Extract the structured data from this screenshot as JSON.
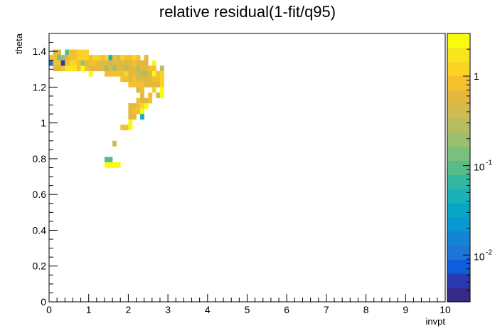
{
  "chart_data": {
    "type": "heatmap",
    "title": "relative residual(1-fit/q95)",
    "xlabel": "invpt",
    "ylabel": "theta",
    "xlim": [
      0,
      10
    ],
    "ylim": [
      0,
      1.5
    ],
    "x_bin_width": 0.1,
    "y_bin_width": 0.03,
    "x_ticks": [
      "0",
      "1",
      "2",
      "3",
      "4",
      "5",
      "6",
      "7",
      "8",
      "9",
      "10"
    ],
    "y_ticks": [
      "0",
      "0.2",
      "0.4",
      "0.6",
      "0.8",
      "1",
      "1.2",
      "1.4"
    ],
    "colorbar": {
      "scale": "log",
      "range": [
        0.003,
        3
      ],
      "ticks": [
        {
          "value": 0.01,
          "label": "10",
          "exp": "-2"
        },
        {
          "value": 0.1,
          "label": "10",
          "exp": "-1"
        },
        {
          "value": 1,
          "label": "1",
          "exp": ""
        }
      ]
    },
    "palette": [
      "#352a87",
      "#2a39b0",
      "#0f5cdd",
      "#1d74d9",
      "#1485d4",
      "#0998d1",
      "#08a6c6",
      "#17b1b6",
      "#33b7a0",
      "#57bb8a",
      "#7abf7c",
      "#9cbf6e",
      "#b6bd60",
      "#cfbb50",
      "#e2b93e",
      "#f5c02e",
      "#fbd325",
      "#f8e61d",
      "#f9fb0e"
    ],
    "cells": [
      [
        0.1,
        1.38,
        0.5
      ],
      [
        0.2,
        1.38,
        0.4
      ],
      [
        0.4,
        1.38,
        0.1
      ],
      [
        0.5,
        1.38,
        0.9
      ],
      [
        0.6,
        1.38,
        0.9
      ],
      [
        0.7,
        1.38,
        1.2
      ],
      [
        0.8,
        1.38,
        1.2
      ],
      [
        0.9,
        1.38,
        1.2
      ],
      [
        0.0,
        1.35,
        1.0
      ],
      [
        0.1,
        1.35,
        0.8
      ],
      [
        0.2,
        1.35,
        0.15
      ],
      [
        0.3,
        1.35,
        0.2
      ],
      [
        0.4,
        1.35,
        0.5
      ],
      [
        0.5,
        1.35,
        0.8
      ],
      [
        0.6,
        1.35,
        1.0
      ],
      [
        0.7,
        1.35,
        1.1
      ],
      [
        0.8,
        1.35,
        1.2
      ],
      [
        0.9,
        1.35,
        1.1
      ],
      [
        1.0,
        1.35,
        1.0
      ],
      [
        1.1,
        1.35,
        1.1
      ],
      [
        1.2,
        1.35,
        1.2
      ],
      [
        1.3,
        1.35,
        1.0
      ],
      [
        1.4,
        1.35,
        1.1
      ],
      [
        1.5,
        1.35,
        0.05
      ],
      [
        1.6,
        1.35,
        0.9
      ],
      [
        1.7,
        1.35,
        0.4
      ],
      [
        1.8,
        1.35,
        1.1
      ],
      [
        1.9,
        1.35,
        1.0
      ],
      [
        2.0,
        1.35,
        1.0
      ],
      [
        2.1,
        1.35,
        1.2
      ],
      [
        2.2,
        1.35,
        0.9
      ],
      [
        2.4,
        1.35,
        0.5
      ],
      [
        0.0,
        1.32,
        0.01
      ],
      [
        0.1,
        1.32,
        0.9
      ],
      [
        0.2,
        1.32,
        1.0
      ],
      [
        0.3,
        1.32,
        0.005
      ],
      [
        0.4,
        1.32,
        1.0
      ],
      [
        0.5,
        1.32,
        1.1
      ],
      [
        0.6,
        1.32,
        1.1
      ],
      [
        0.7,
        1.32,
        0.8
      ],
      [
        0.8,
        1.32,
        0.2
      ],
      [
        0.9,
        1.32,
        0.6
      ],
      [
        1.0,
        1.32,
        0.9
      ],
      [
        1.1,
        1.32,
        0.8
      ],
      [
        1.2,
        1.32,
        0.7
      ],
      [
        1.3,
        1.32,
        0.5
      ],
      [
        1.4,
        1.32,
        0.7
      ],
      [
        1.5,
        1.32,
        0.4
      ],
      [
        1.6,
        1.32,
        0.7
      ],
      [
        1.7,
        1.32,
        0.5
      ],
      [
        1.8,
        1.32,
        0.5
      ],
      [
        1.9,
        1.32,
        0.6
      ],
      [
        2.0,
        1.32,
        0.5
      ],
      [
        2.1,
        1.32,
        0.8
      ],
      [
        2.2,
        1.32,
        0.5
      ],
      [
        2.3,
        1.32,
        0.7
      ],
      [
        2.4,
        1.32,
        0.6
      ],
      [
        2.6,
        1.32,
        2.5
      ],
      [
        0.1,
        1.29,
        0.5
      ],
      [
        0.2,
        1.29,
        0.5
      ],
      [
        0.3,
        1.29,
        0.9
      ],
      [
        0.4,
        1.29,
        1.8
      ],
      [
        0.5,
        1.29,
        2.0
      ],
      [
        0.6,
        1.29,
        1.8
      ],
      [
        0.7,
        1.29,
        1.0
      ],
      [
        0.8,
        1.29,
        2.5
      ],
      [
        0.9,
        1.29,
        1.0
      ],
      [
        1.0,
        1.29,
        0.6
      ],
      [
        1.1,
        1.29,
        0.5
      ],
      [
        1.2,
        1.29,
        0.6
      ],
      [
        1.3,
        1.29,
        0.6
      ],
      [
        1.4,
        1.29,
        0.2
      ],
      [
        1.5,
        1.29,
        0.6
      ],
      [
        1.6,
        1.29,
        0.2
      ],
      [
        1.7,
        1.29,
        0.5
      ],
      [
        1.8,
        1.29,
        0.6
      ],
      [
        1.9,
        1.29,
        0.3
      ],
      [
        2.0,
        1.29,
        0.5
      ],
      [
        2.1,
        1.29,
        0.6
      ],
      [
        2.2,
        1.29,
        0.3
      ],
      [
        2.3,
        1.29,
        0.5
      ],
      [
        2.4,
        1.29,
        0.6
      ],
      [
        2.5,
        1.29,
        1.0
      ],
      [
        2.6,
        1.29,
        0.8
      ],
      [
        2.8,
        1.29,
        0.3
      ],
      [
        1.0,
        1.26,
        2.5
      ],
      [
        1.4,
        1.26,
        1.0
      ],
      [
        1.5,
        1.26,
        0.9
      ],
      [
        1.6,
        1.26,
        0.9
      ],
      [
        1.7,
        1.26,
        1.0
      ],
      [
        1.8,
        1.26,
        0.9
      ],
      [
        1.9,
        1.26,
        1.1
      ],
      [
        2.0,
        1.26,
        0.5
      ],
      [
        2.1,
        1.26,
        0.6
      ],
      [
        2.2,
        1.26,
        0.4
      ],
      [
        2.3,
        1.26,
        0.3
      ],
      [
        2.4,
        1.26,
        0.3
      ],
      [
        2.5,
        1.26,
        0.5
      ],
      [
        2.6,
        1.26,
        2.5
      ],
      [
        2.7,
        1.26,
        1.0
      ],
      [
        2.8,
        1.26,
        1.2
      ],
      [
        1.8,
        1.23,
        0.8
      ],
      [
        1.9,
        1.23,
        1.0
      ],
      [
        2.0,
        1.23,
        0.7
      ],
      [
        2.1,
        1.23,
        0.9
      ],
      [
        2.2,
        1.23,
        0.7
      ],
      [
        2.3,
        1.23,
        0.6
      ],
      [
        2.4,
        1.23,
        0.5
      ],
      [
        2.5,
        1.23,
        0.7
      ],
      [
        2.6,
        1.23,
        0.9
      ],
      [
        2.7,
        1.23,
        0.8
      ],
      [
        2.8,
        1.23,
        1.2
      ],
      [
        2.0,
        1.2,
        0.8
      ],
      [
        2.1,
        1.2,
        1.0
      ],
      [
        2.2,
        1.2,
        0.8
      ],
      [
        2.3,
        1.2,
        0.9
      ],
      [
        2.4,
        1.2,
        0.7
      ],
      [
        2.5,
        1.2,
        0.6
      ],
      [
        2.6,
        1.2,
        0.6
      ],
      [
        2.7,
        1.2,
        0.7
      ],
      [
        2.8,
        1.2,
        1.2
      ],
      [
        2.2,
        1.17,
        0.4
      ],
      [
        2.3,
        1.17,
        0.8
      ],
      [
        2.6,
        1.17,
        1.2
      ],
      [
        2.8,
        1.17,
        2.5
      ],
      [
        2.3,
        1.14,
        0.5
      ],
      [
        2.5,
        1.14,
        0.9
      ],
      [
        2.7,
        1.14,
        0.4
      ],
      [
        2.8,
        1.14,
        2.8
      ],
      [
        2.2,
        1.11,
        0.8
      ],
      [
        2.3,
        1.11,
        0.5
      ],
      [
        2.4,
        1.11,
        0.7
      ],
      [
        2.5,
        1.11,
        1.0
      ],
      [
        2.0,
        1.08,
        0.7
      ],
      [
        2.1,
        1.08,
        0.7
      ],
      [
        2.2,
        1.08,
        1.0
      ],
      [
        2.3,
        1.08,
        1.1
      ],
      [
        2.4,
        1.08,
        2.8
      ],
      [
        2.0,
        1.05,
        0.7
      ],
      [
        2.1,
        1.05,
        0.8
      ],
      [
        2.2,
        1.05,
        1.0
      ],
      [
        2.3,
        1.05,
        2.5
      ],
      [
        2.0,
        1.02,
        0.7
      ],
      [
        2.1,
        1.02,
        0.6
      ],
      [
        2.3,
        1.02,
        0.05
      ],
      [
        2.0,
        0.99,
        2.7
      ],
      [
        1.8,
        0.96,
        0.8
      ],
      [
        1.9,
        0.96,
        1.0
      ],
      [
        2.0,
        0.96,
        2.8
      ],
      [
        1.6,
        0.87,
        0.35
      ],
      [
        1.4,
        0.78,
        0.1
      ],
      [
        1.5,
        0.78,
        0.1
      ],
      [
        1.4,
        0.75,
        3.0
      ],
      [
        1.5,
        0.75,
        3.0
      ],
      [
        1.6,
        0.75,
        3.0
      ],
      [
        1.7,
        0.75,
        3.0
      ]
    ]
  }
}
